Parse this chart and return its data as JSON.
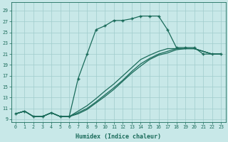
{
  "xlabel": "Humidex (Indice chaleur)",
  "bg_color": "#c8e8e8",
  "grid_color": "#a0cccc",
  "line_color": "#1a6b5a",
  "xlim": [
    -0.5,
    23.5
  ],
  "ylim": [
    8.5,
    30.5
  ],
  "xticks": [
    0,
    1,
    2,
    3,
    4,
    5,
    6,
    7,
    8,
    9,
    10,
    11,
    12,
    13,
    14,
    15,
    16,
    17,
    18,
    19,
    20,
    21,
    22,
    23
  ],
  "yticks": [
    9,
    11,
    13,
    15,
    17,
    19,
    21,
    23,
    25,
    27,
    29
  ],
  "curve_main_x": [
    0,
    1,
    2,
    3,
    4,
    5,
    6,
    7,
    8,
    9,
    10,
    11,
    12,
    13,
    14,
    15,
    16,
    17,
    18,
    19,
    20,
    21,
    22,
    23
  ],
  "curve_main_y": [
    10.0,
    10.5,
    9.5,
    9.5,
    10.2,
    9.5,
    9.5,
    16.5,
    21.0,
    25.5,
    26.2,
    27.2,
    27.2,
    27.5,
    28.0,
    28.0,
    28.0,
    25.5,
    22.2,
    22.2,
    22.2,
    21.0,
    21.0,
    21.0
  ],
  "curve2_x": [
    0,
    1,
    2,
    3,
    4,
    5,
    6,
    7,
    8,
    9,
    10,
    11,
    12,
    13,
    14,
    15,
    16,
    17,
    18,
    19,
    20,
    21,
    22,
    23
  ],
  "curve2_y": [
    10.0,
    10.5,
    9.5,
    9.5,
    10.2,
    9.5,
    9.5,
    10.5,
    11.5,
    12.8,
    14.2,
    15.5,
    17.0,
    18.5,
    20.0,
    20.8,
    21.5,
    22.0,
    22.0,
    22.0,
    22.0,
    21.5,
    21.0,
    21.0
  ],
  "curve3_x": [
    0,
    1,
    2,
    3,
    4,
    5,
    6,
    7,
    8,
    9,
    10,
    11,
    12,
    13,
    14,
    15,
    16,
    17,
    18,
    19,
    20,
    21,
    22,
    23
  ],
  "curve3_y": [
    10.0,
    10.5,
    9.5,
    9.5,
    10.2,
    9.5,
    9.5,
    10.2,
    11.0,
    12.2,
    13.5,
    14.8,
    16.2,
    17.8,
    19.2,
    20.2,
    21.0,
    21.5,
    22.0,
    22.0,
    22.0,
    21.5,
    21.0,
    21.0
  ],
  "curve4_x": [
    0,
    1,
    2,
    3,
    4,
    5,
    6,
    7,
    8,
    9,
    10,
    11,
    12,
    13,
    14,
    15,
    16,
    17,
    18,
    19,
    20,
    21,
    22,
    23
  ],
  "curve4_y": [
    10.0,
    10.5,
    9.5,
    9.5,
    10.2,
    9.5,
    9.5,
    10.0,
    10.8,
    12.0,
    13.2,
    14.5,
    16.0,
    17.5,
    18.8,
    20.0,
    20.8,
    21.2,
    21.8,
    22.0,
    22.0,
    21.5,
    21.0,
    21.0
  ],
  "markers_x": [
    0,
    1,
    2,
    3,
    4,
    5,
    6,
    7,
    8,
    9,
    10,
    11,
    12,
    13,
    14,
    15,
    16,
    17,
    18,
    19,
    20,
    21,
    22,
    23
  ],
  "markers_y": [
    10.0,
    10.5,
    9.5,
    9.5,
    10.2,
    9.5,
    9.5,
    16.5,
    21.0,
    25.5,
    26.2,
    27.2,
    27.2,
    27.5,
    28.0,
    28.0,
    28.0,
    25.5,
    22.2,
    22.2,
    22.2,
    21.0,
    21.0,
    21.0
  ]
}
